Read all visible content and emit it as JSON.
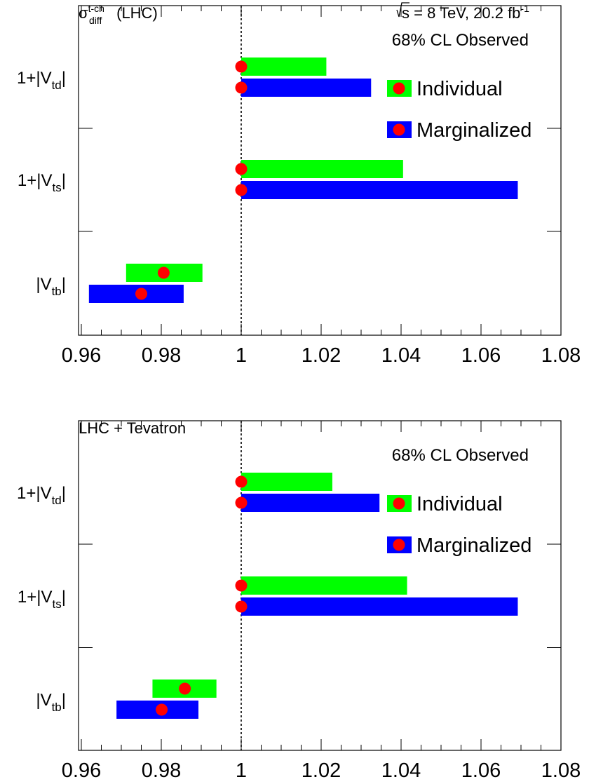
{
  "chart_data": [
    {
      "type": "bar",
      "orientation": "horizontal",
      "title": "σ(LHC)",
      "title_parts": {
        "symbol": "σ",
        "sup": "t-ch",
        "sub": "diff",
        "rest": "(LHC)"
      },
      "energy_label": {
        "sqrt": "s",
        "text": "= 8 TeV, 20.2 fb",
        "sup": "-1"
      },
      "annotation": "68% CL Observed",
      "legend": {
        "placement": "right",
        "entries": [
          "Individual",
          "Marginalized"
        ]
      },
      "xlim": [
        0.96,
        1.08
      ],
      "xticks": [
        "0.96",
        "0.98",
        "1",
        "1.02",
        "1.04",
        "1.06",
        "1.08"
      ],
      "reference_line": 1.0,
      "categories": [
        {
          "pre": "1+|V",
          "sub": "td",
          "post": "|"
        },
        {
          "pre": "1+|V",
          "sub": "ts",
          "post": "|"
        },
        {
          "pre": "|V",
          "sub": "tb",
          "post": "|"
        }
      ],
      "series": [
        {
          "name": "Individual",
          "color": "#00ff00",
          "intervals": [
            [
              1.0,
              1.0213
            ],
            [
              1.0,
              1.0405
            ],
            [
              0.9712,
              0.9903
            ]
          ],
          "central": [
            1.0,
            1.0,
            0.9806
          ]
        },
        {
          "name": "Marginalized",
          "color": "#0000ff",
          "intervals": [
            [
              1.0,
              1.0325
            ],
            [
              1.0,
              1.0692
            ],
            [
              0.9619,
              0.9856
            ]
          ],
          "central": [
            1.0,
            1.0,
            0.975
          ]
        }
      ]
    },
    {
      "type": "bar",
      "orientation": "horizontal",
      "title": "LHC + Tevatron",
      "annotation": "68% CL Observed",
      "legend": {
        "placement": "right",
        "entries": [
          "Individual",
          "Marginalized"
        ]
      },
      "xlim": [
        0.96,
        1.08
      ],
      "xticks": [
        "0.96",
        "0.98",
        "1",
        "1.02",
        "1.04",
        "1.06",
        "1.08"
      ],
      "reference_line": 1.0,
      "categories": [
        {
          "pre": "1+|V",
          "sub": "td",
          "post": "|"
        },
        {
          "pre": "1+|V",
          "sub": "ts",
          "post": "|"
        },
        {
          "pre": "|V",
          "sub": "tb",
          "post": "|"
        }
      ],
      "series": [
        {
          "name": "Individual",
          "color": "#00ff00",
          "intervals": [
            [
              1.0,
              1.0228
            ],
            [
              1.0,
              1.0415
            ],
            [
              0.9778,
              0.9938
            ]
          ],
          "central": [
            1.0,
            1.0,
            0.9859
          ]
        },
        {
          "name": "Marginalized",
          "color": "#0000ff",
          "intervals": [
            [
              1.0,
              1.0346
            ],
            [
              1.0,
              1.0692
            ],
            [
              0.9688,
              0.9893
            ]
          ],
          "central": [
            1.0,
            1.0,
            0.9801
          ]
        }
      ]
    }
  ],
  "colors": {
    "individual": "#00ff00",
    "marginalized": "#0000ff",
    "marker": "#ff0000"
  }
}
